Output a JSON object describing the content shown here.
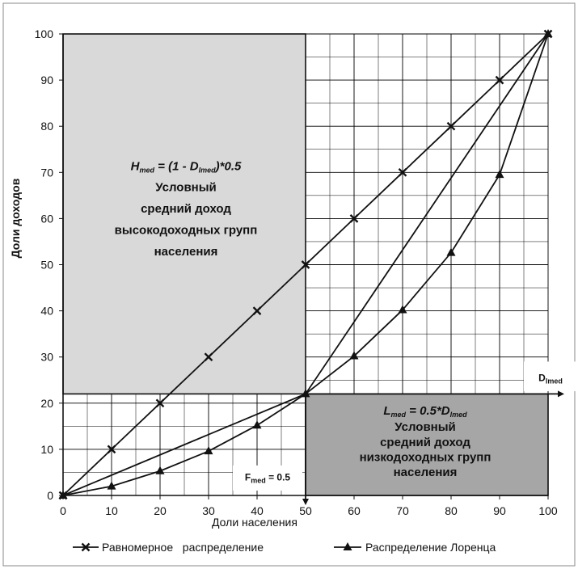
{
  "chart_data": {
    "type": "line",
    "xlabel": "Доли населения",
    "ylabel": "Доли доходов",
    "xlim": [
      0,
      100
    ],
    "ylim": [
      0,
      100
    ],
    "x_ticks": [
      0,
      10,
      20,
      30,
      40,
      50,
      60,
      70,
      80,
      90,
      100
    ],
    "y_ticks": [
      0,
      10,
      20,
      30,
      40,
      50,
      60,
      70,
      80,
      90,
      100
    ],
    "grid": true,
    "legend_position": "bottom",
    "series": [
      {
        "name": "Равномерное   распределение",
        "marker": "x",
        "x": [
          0,
          10,
          20,
          30,
          40,
          50,
          60,
          70,
          80,
          90,
          100
        ],
        "y": [
          0,
          10,
          20,
          30,
          40,
          50,
          60,
          70,
          80,
          90,
          100
        ]
      },
      {
        "name": "Распределение Лоренца",
        "marker": "triangle",
        "x": [
          0,
          10,
          20,
          30,
          40,
          50,
          60,
          70,
          80,
          90,
          100
        ],
        "y": [
          0,
          2,
          5.3,
          9.6,
          15.2,
          22,
          30.2,
          40.2,
          52.6,
          69.5,
          100
        ]
      }
    ],
    "reference_lines": [
      {
        "x": [
          0,
          50,
          100
        ],
        "y": [
          0,
          22,
          100
        ]
      }
    ],
    "annotations": {
      "upper_box": {
        "formula_parts": [
          "H",
          "med",
          " = (1 - D",
          "lmed",
          ")*0.5"
        ],
        "lines": [
          "Условный",
          "средний доход",
          "высокодоходных групп",
          "населения"
        ],
        "fill": "#d9d9d9"
      },
      "lower_box": {
        "formula_parts": [
          "L",
          "med",
          " = 0.5*D",
          "lmed"
        ],
        "lines": [
          "Условный",
          "средний доход",
          "низкодоходных групп",
          "населения"
        ],
        "fill": "#a6a6a6"
      },
      "f_label": {
        "parts": [
          "F",
          "med",
          " = 0.5"
        ]
      },
      "d_label": {
        "parts": [
          "D",
          "lmed"
        ]
      }
    },
    "colors": {
      "line": "#111111",
      "grid": "#000000",
      "upper_box": "#d9d9d9",
      "lower_box": "#a6a6a6"
    }
  }
}
